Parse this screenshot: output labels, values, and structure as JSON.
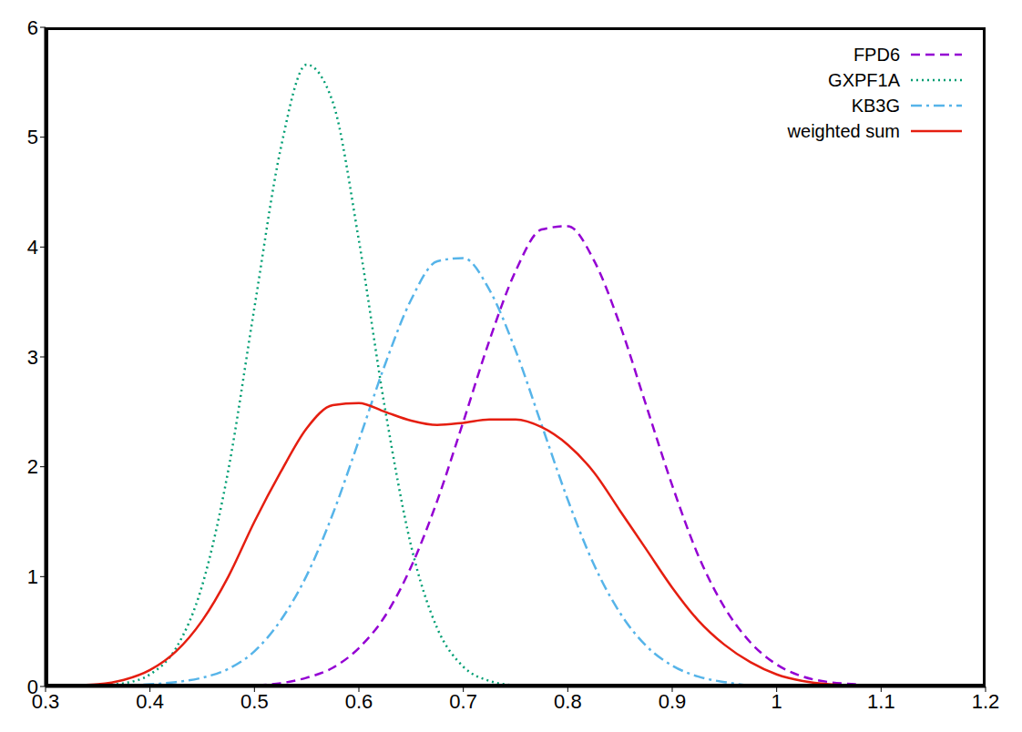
{
  "chart_data": {
    "type": "line",
    "x": [
      0.3,
      0.325,
      0.35,
      0.375,
      0.4,
      0.425,
      0.45,
      0.475,
      0.5,
      0.525,
      0.55,
      0.575,
      0.6,
      0.625,
      0.65,
      0.675,
      0.7,
      0.725,
      0.75,
      0.775,
      0.8,
      0.825,
      0.85,
      0.875,
      0.9,
      0.925,
      0.95,
      0.975,
      1.0,
      1.025,
      1.05,
      1.075,
      1.1,
      1.125,
      1.15
    ],
    "series": [
      {
        "name": "FPD6",
        "color": "#9400d3",
        "line_style": "dashed",
        "values": [
          null,
          null,
          null,
          null,
          null,
          null,
          null,
          0,
          0.01,
          0.03,
          0.08,
          0.17,
          0.35,
          0.64,
          1.09,
          1.69,
          2.41,
          3.15,
          3.78,
          4.16,
          4.19,
          3.88,
          3.29,
          2.56,
          1.83,
          1.19,
          0.72,
          0.4,
          0.2,
          0.09,
          0.04,
          0.02,
          0,
          null,
          null
        ]
      },
      {
        "name": "GXPF1A",
        "color": "#009e73",
        "line_style": "dotted",
        "values": [
          0,
          0,
          0.01,
          0.03,
          0.11,
          0.35,
          0.92,
          1.97,
          3.45,
          4.89,
          5.66,
          5.32,
          4.06,
          2.53,
          1.28,
          0.53,
          0.18,
          0.05,
          0.01,
          0,
          null,
          null,
          null,
          null,
          null,
          null,
          null,
          null,
          null,
          null,
          null,
          null,
          null,
          null,
          null
        ]
      },
      {
        "name": "KB3G",
        "color": "#56b4e9",
        "line_style": "dashdot",
        "values": [
          null,
          null,
          0,
          0.01,
          0.02,
          0.04,
          0.08,
          0.16,
          0.32,
          0.6,
          1.01,
          1.57,
          2.24,
          2.93,
          3.52,
          3.87,
          3.9,
          3.61,
          3.06,
          2.38,
          1.7,
          1.11,
          0.67,
          0.37,
          0.19,
          0.09,
          0.04,
          0.01,
          0,
          null,
          null,
          null,
          null,
          null,
          null
        ]
      },
      {
        "name": "weighted sum",
        "color": "#e51e10",
        "line_style": "solid",
        "values": [
          0,
          0.01,
          0.02,
          0.06,
          0.15,
          0.32,
          0.6,
          1.0,
          1.5,
          1.95,
          2.35,
          2.56,
          2.58,
          2.5,
          2.42,
          2.38,
          2.4,
          2.43,
          2.43,
          2.36,
          2.2,
          1.95,
          1.6,
          1.25,
          0.9,
          0.6,
          0.38,
          0.22,
          0.11,
          0.05,
          0.02,
          0.01,
          0,
          0,
          0
        ]
      }
    ],
    "xlim": [
      0.3,
      1.2
    ],
    "xticks": [
      0.3,
      0.4,
      0.5,
      0.6,
      0.7,
      0.8,
      0.9,
      1,
      1.1,
      1.2
    ],
    "ylim": [
      0,
      6
    ],
    "yticks": [
      0,
      1,
      2,
      3,
      4,
      5,
      6
    ],
    "grid": false,
    "legend": "top-right"
  }
}
